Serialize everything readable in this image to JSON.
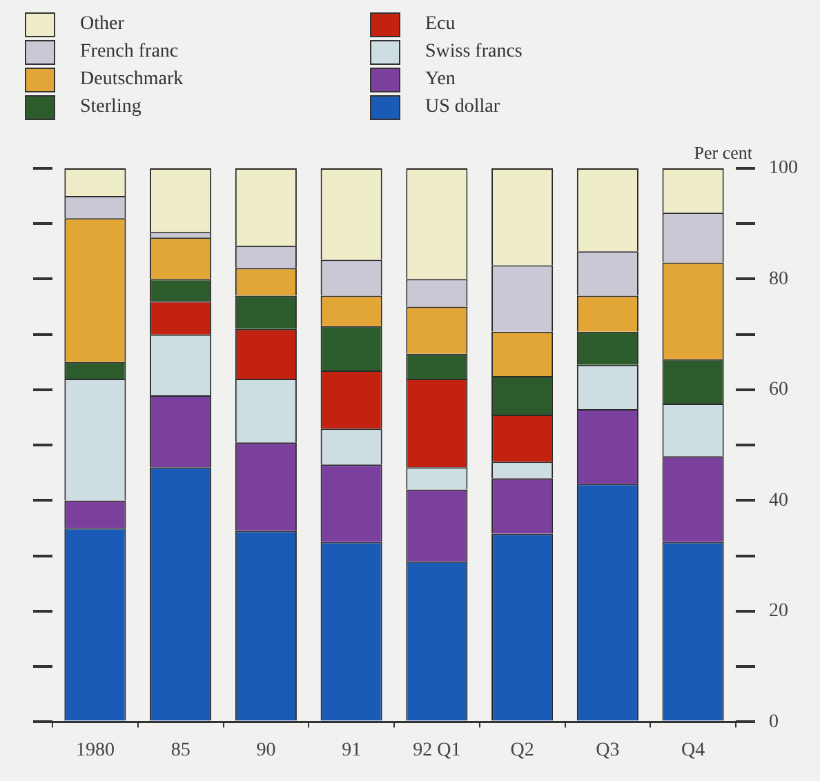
{
  "chart_data": {
    "type": "bar",
    "stacked": true,
    "ylabel": "Per cent",
    "categories": [
      "1980",
      "85",
      "90",
      "91",
      "92 Q1",
      "Q2",
      "Q3",
      "Q4"
    ],
    "series": [
      {
        "name": "US dollar",
        "color": "#1a5bb8",
        "values": [
          35,
          46,
          34.5,
          32.5,
          29,
          34,
          43,
          32.5
        ]
      },
      {
        "name": "Yen",
        "color": "#7b3f9e",
        "values": [
          5,
          13,
          16,
          14,
          13,
          10,
          13.5,
          15.5
        ]
      },
      {
        "name": "Swiss francs",
        "color": "#cddde2",
        "values": [
          22,
          11,
          11.5,
          6.5,
          4,
          3,
          8,
          9.5
        ]
      },
      {
        "name": "Ecu",
        "color": "#c42210",
        "values": [
          0,
          6,
          9,
          10.5,
          16,
          8.5,
          0,
          0
        ]
      },
      {
        "name": "Sterling",
        "color": "#2d5c2c",
        "values": [
          3,
          4,
          6,
          8,
          4.5,
          7,
          6,
          8
        ]
      },
      {
        "name": "Deutschmark",
        "color": "#e1a636",
        "values": [
          26,
          7.5,
          5,
          5.5,
          8.5,
          8,
          6.5,
          17.5
        ]
      },
      {
        "name": "French franc",
        "color": "#cbc8d6",
        "values": [
          4,
          1,
          4,
          6.5,
          5,
          12,
          8,
          9
        ]
      },
      {
        "name": "Other",
        "color": "#eeedc8",
        "values": [
          5,
          11.5,
          14,
          16.5,
          20,
          17.5,
          15,
          8
        ]
      }
    ],
    "ylim": [
      0,
      100
    ],
    "yticks": [
      0,
      {
        "value": 10,
        "label": null
      },
      20,
      {
        "value": 30,
        "label": null
      },
      40,
      {
        "value": 50,
        "label": null
      },
      60,
      {
        "value": 70,
        "label": null
      },
      80,
      {
        "value": 90,
        "label": null
      },
      100
    ],
    "grid": false,
    "legend": "top left"
  }
}
